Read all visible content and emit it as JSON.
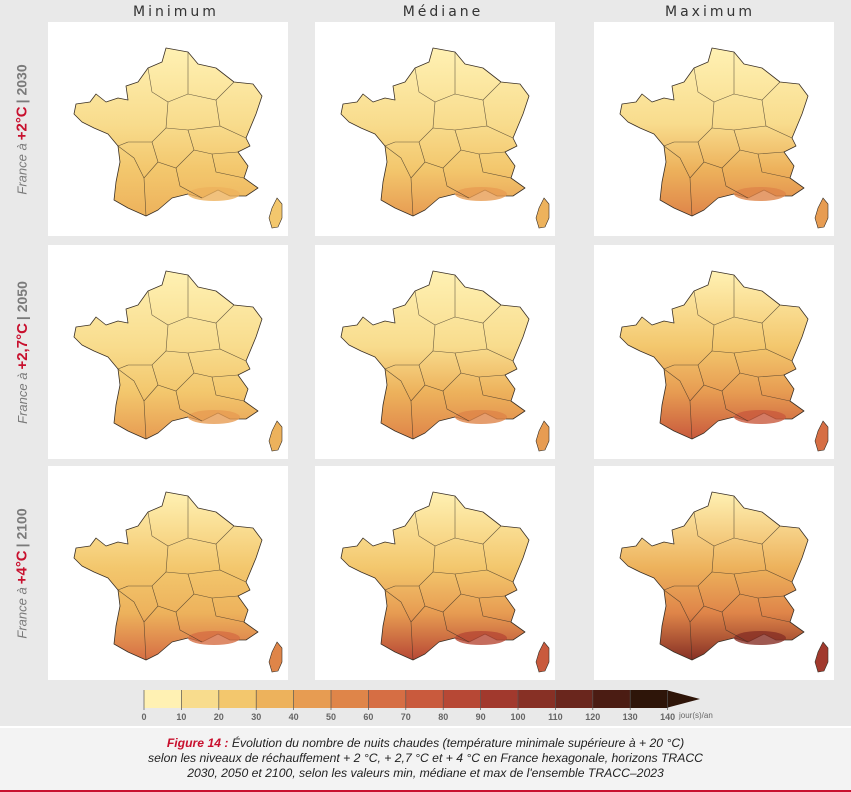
{
  "columns": [
    "Minimum",
    "Médiane",
    "Maximum"
  ],
  "rows": [
    {
      "prefix": "France à",
      "level": "+2°C",
      "year": "| 2030"
    },
    {
      "prefix": "France à",
      "level": "+2,7°C",
      "year": "| 2050"
    },
    {
      "prefix": "France à",
      "level": "+4°C",
      "year": "| 2100"
    }
  ],
  "colors": {
    "scale": [
      "#fff1b3",
      "#f8dc8d",
      "#f3c76d",
      "#edb25c",
      "#e79c52",
      "#df8549",
      "#d66e44",
      "#c95a3d",
      "#b74835",
      "#a1392d",
      "#873025",
      "#6a261d",
      "#4b1c13",
      "#2e1509"
    ],
    "boundary": "#3a3026",
    "accent": "#c8102e"
  },
  "legend": {
    "ticks": [
      "0",
      "10",
      "20",
      "30",
      "40",
      "50",
      "60",
      "70",
      "80",
      "90",
      "100",
      "110",
      "120",
      "130",
      "140"
    ],
    "unit": "jour(s)/an"
  },
  "caption": {
    "label": "Figure 14 :",
    "line1": "Évolution du nombre de nuits chaudes (température minimale supérieure à + 20 °C)",
    "line2": "selon les niveaux de réchauffement + 2 °C, + 2,7 °C et + 4 °C en France hexagonale, horizons TRACC",
    "line3": "2030, 2050 et 2100, selon les valeurs min, médiane et max de l'ensemble TRACC–2023"
  }
}
